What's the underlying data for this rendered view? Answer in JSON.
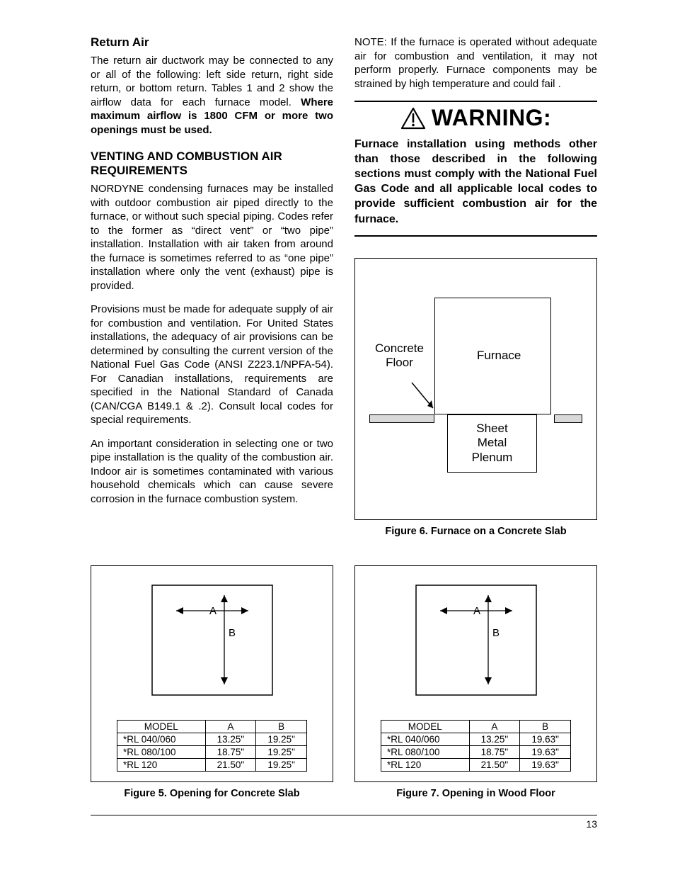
{
  "left": {
    "h_return": "Return Air",
    "p_return": "The return air ductwork may be connected to any or all of the following: left side return, right side return, or bottom return. Tables 1 and 2 show the airflow data for each furnace model. ",
    "p_return_bold": "Where maximum airflow is 1800 CFM or more two openings must be used.",
    "h_venting": "VENTING AND COMBUSTION AIR REQUIREMENTS",
    "p_v1": "NORDYNE condensing furnaces may be installed with outdoor combustion air piped directly to the furnace, or without such special piping.  Codes refer to the former as “direct vent” or “two pipe” installation. Installation with air taken from around the furnace is sometimes referred to as “one pipe” installation where only the vent (exhaust) pipe is provided.",
    "p_v2": "Provisions must be made for adequate supply of air for combustion and ventilation.  For United States installations, the adequacy of air provisions can be determined by consulting the current version of the National Fuel Gas Code (ANSI Z223.1/NPFA-54). For Canadian installations, requirements are specified in the National Standard of Canada (CAN/CGA B149.1 & .2). Consult local codes for special requirements.",
    "p_v3": "An important consideration in selecting one or two pipe installation is the quality of the combustion air.  Indoor air is sometimes contaminated with various household chemicals which can cause severe corrosion in the furnace combustion system."
  },
  "right": {
    "note": "NOTE: If the furnace is operated without adequate air for combustion and ventilation, it may not perform properly. Furnace components may be strained by high temperature and could fail .",
    "warning_title": "WARNING:",
    "warning_body": "Furnace installation using methods other than those described in the following sections must comply with the National Fuel Gas Code and all applicable local codes to provide sufficient combustion air for the furnace."
  },
  "fig6": {
    "concrete": "Concrete\nFloor",
    "furnace": "Furnace",
    "plenum": "Sheet\nMetal\nPlenum",
    "caption": "Figure 6.  Furnace on a Concrete Slab"
  },
  "fig5": {
    "caption": "Figure 5.  Opening for Concrete Slab",
    "headers": [
      "MODEL",
      "A",
      "B"
    ],
    "rows": [
      [
        "*RL 040/060",
        "13.25\"",
        "19.25\""
      ],
      [
        "*RL 080/100",
        "18.75\"",
        "19.25\""
      ],
      [
        "*RL 120",
        "21.50\"",
        "19.25\""
      ]
    ]
  },
  "fig7": {
    "caption": "Figure 7. Opening in Wood Floor",
    "headers": [
      "MODEL",
      "A",
      "B"
    ],
    "rows": [
      [
        "*RL 040/060",
        "13.25\"",
        "19.63\""
      ],
      [
        "*RL 080/100",
        "18.75\"",
        "19.63\""
      ],
      [
        "*RL 120",
        "21.50\"",
        "19.63\""
      ]
    ]
  },
  "dim_labels": {
    "a": "A",
    "b": "B"
  },
  "page_number": "13"
}
